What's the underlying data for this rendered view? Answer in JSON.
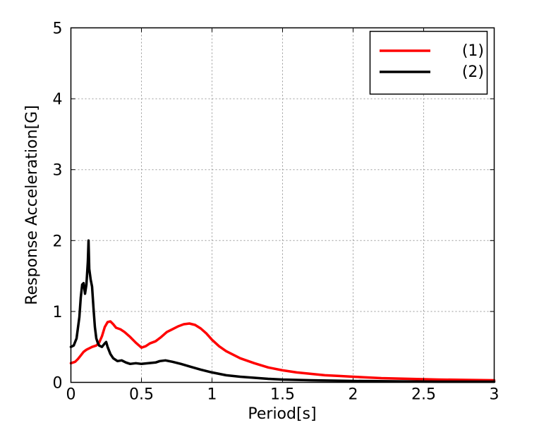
{
  "chart_data": {
    "type": "line",
    "title": "",
    "xlabel": "Period[s]",
    "ylabel": "Response Acceleration[G]",
    "xlim": [
      0,
      3
    ],
    "ylim": [
      0,
      5
    ],
    "x_ticks": [
      0,
      0.5,
      1,
      1.5,
      2,
      2.5,
      3
    ],
    "x_tick_labels": [
      "0",
      "0.5",
      "1",
      "1.5",
      "2",
      "2.5",
      "3"
    ],
    "y_ticks": [
      0,
      1,
      2,
      3,
      4,
      5
    ],
    "y_tick_labels": [
      "0",
      "1",
      "2",
      "3",
      "4",
      "5"
    ],
    "grid": true,
    "legend_position": "top-right",
    "series": [
      {
        "name": "(1)",
        "color": "#ff0000",
        "points": [
          [
            0.0,
            0.27
          ],
          [
            0.03,
            0.29
          ],
          [
            0.05,
            0.33
          ],
          [
            0.07,
            0.38
          ],
          [
            0.09,
            0.43
          ],
          [
            0.11,
            0.46
          ],
          [
            0.13,
            0.48
          ],
          [
            0.15,
            0.5
          ],
          [
            0.18,
            0.52
          ],
          [
            0.2,
            0.56
          ],
          [
            0.22,
            0.65
          ],
          [
            0.24,
            0.78
          ],
          [
            0.26,
            0.85
          ],
          [
            0.28,
            0.86
          ],
          [
            0.3,
            0.82
          ],
          [
            0.32,
            0.77
          ],
          [
            0.35,
            0.75
          ],
          [
            0.38,
            0.71
          ],
          [
            0.42,
            0.64
          ],
          [
            0.46,
            0.56
          ],
          [
            0.5,
            0.49
          ],
          [
            0.53,
            0.51
          ],
          [
            0.56,
            0.55
          ],
          [
            0.6,
            0.58
          ],
          [
            0.64,
            0.64
          ],
          [
            0.68,
            0.71
          ],
          [
            0.72,
            0.75
          ],
          [
            0.76,
            0.79
          ],
          [
            0.8,
            0.82
          ],
          [
            0.84,
            0.83
          ],
          [
            0.88,
            0.81
          ],
          [
            0.92,
            0.76
          ],
          [
            0.96,
            0.69
          ],
          [
            1.0,
            0.6
          ],
          [
            1.05,
            0.51
          ],
          [
            1.1,
            0.44
          ],
          [
            1.2,
            0.34
          ],
          [
            1.3,
            0.27
          ],
          [
            1.4,
            0.21
          ],
          [
            1.5,
            0.17
          ],
          [
            1.6,
            0.14
          ],
          [
            1.7,
            0.12
          ],
          [
            1.8,
            0.1
          ],
          [
            1.9,
            0.09
          ],
          [
            2.0,
            0.08
          ],
          [
            2.2,
            0.06
          ],
          [
            2.4,
            0.05
          ],
          [
            2.6,
            0.04
          ],
          [
            2.8,
            0.035
          ],
          [
            3.0,
            0.03
          ]
        ]
      },
      {
        "name": "(2)",
        "color": "#000000",
        "points": [
          [
            0.0,
            0.5
          ],
          [
            0.02,
            0.52
          ],
          [
            0.04,
            0.62
          ],
          [
            0.06,
            0.92
          ],
          [
            0.07,
            1.2
          ],
          [
            0.08,
            1.38
          ],
          [
            0.09,
            1.4
          ],
          [
            0.1,
            1.25
          ],
          [
            0.11,
            1.38
          ],
          [
            0.12,
            1.7
          ],
          [
            0.125,
            2.0
          ],
          [
            0.13,
            1.6
          ],
          [
            0.14,
            1.45
          ],
          [
            0.15,
            1.35
          ],
          [
            0.16,
            1.05
          ],
          [
            0.17,
            0.78
          ],
          [
            0.18,
            0.62
          ],
          [
            0.19,
            0.56
          ],
          [
            0.2,
            0.52
          ],
          [
            0.22,
            0.5
          ],
          [
            0.24,
            0.55
          ],
          [
            0.25,
            0.57
          ],
          [
            0.26,
            0.5
          ],
          [
            0.28,
            0.4
          ],
          [
            0.3,
            0.34
          ],
          [
            0.33,
            0.3
          ],
          [
            0.36,
            0.31
          ],
          [
            0.39,
            0.28
          ],
          [
            0.42,
            0.26
          ],
          [
            0.46,
            0.27
          ],
          [
            0.5,
            0.26
          ],
          [
            0.55,
            0.27
          ],
          [
            0.6,
            0.28
          ],
          [
            0.63,
            0.3
          ],
          [
            0.67,
            0.31
          ],
          [
            0.72,
            0.29
          ],
          [
            0.78,
            0.26
          ],
          [
            0.85,
            0.22
          ],
          [
            0.92,
            0.18
          ],
          [
            1.0,
            0.14
          ],
          [
            1.1,
            0.1
          ],
          [
            1.2,
            0.08
          ],
          [
            1.3,
            0.065
          ],
          [
            1.4,
            0.05
          ],
          [
            1.5,
            0.04
          ],
          [
            1.7,
            0.03
          ],
          [
            2.0,
            0.02
          ],
          [
            2.3,
            0.015
          ],
          [
            2.6,
            0.01
          ],
          [
            3.0,
            0.01
          ]
        ]
      }
    ]
  }
}
